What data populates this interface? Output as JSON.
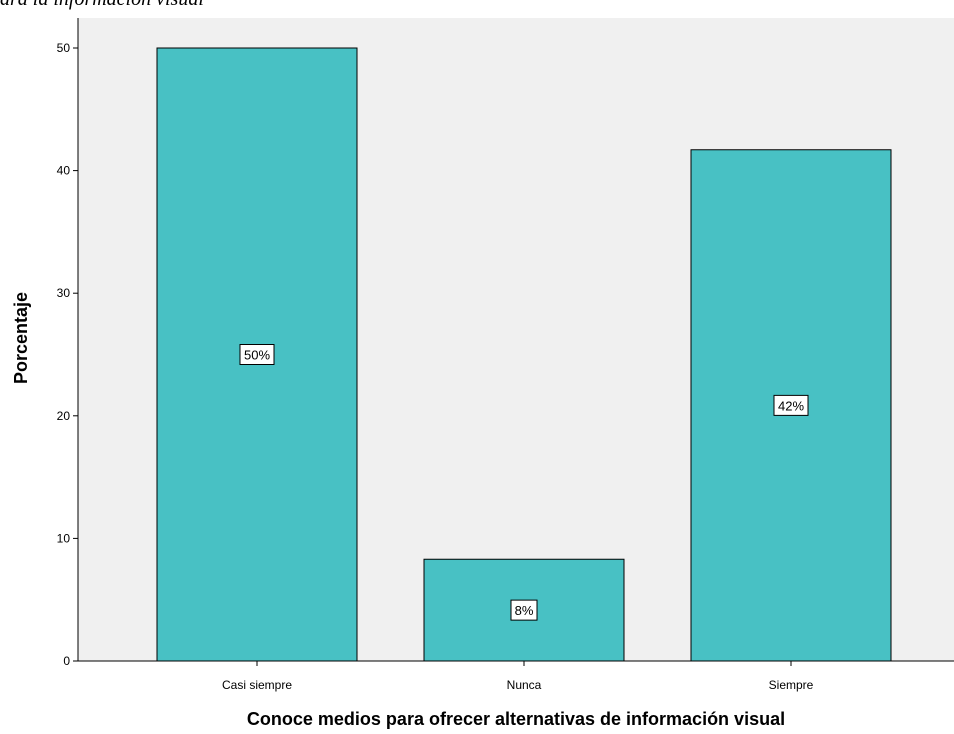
{
  "chart_data": {
    "type": "bar",
    "title": "ara la información visual",
    "xlabel": "Conoce medios para ofrecer alternativas de información visual",
    "ylabel": "Porcentaje",
    "ylim": [
      0,
      52.5
    ],
    "yticks": [
      0,
      10,
      20,
      30,
      40,
      50
    ],
    "categories": [
      "Casi siempre",
      "Nunca",
      "Siempre"
    ],
    "values": [
      50.0,
      8.3,
      41.7
    ],
    "data_labels": [
      "50%",
      "8%",
      "42%"
    ],
    "bar_color": "#48c1c4",
    "plot_background": "#f0f0f0",
    "grid": false,
    "legend": "none"
  }
}
